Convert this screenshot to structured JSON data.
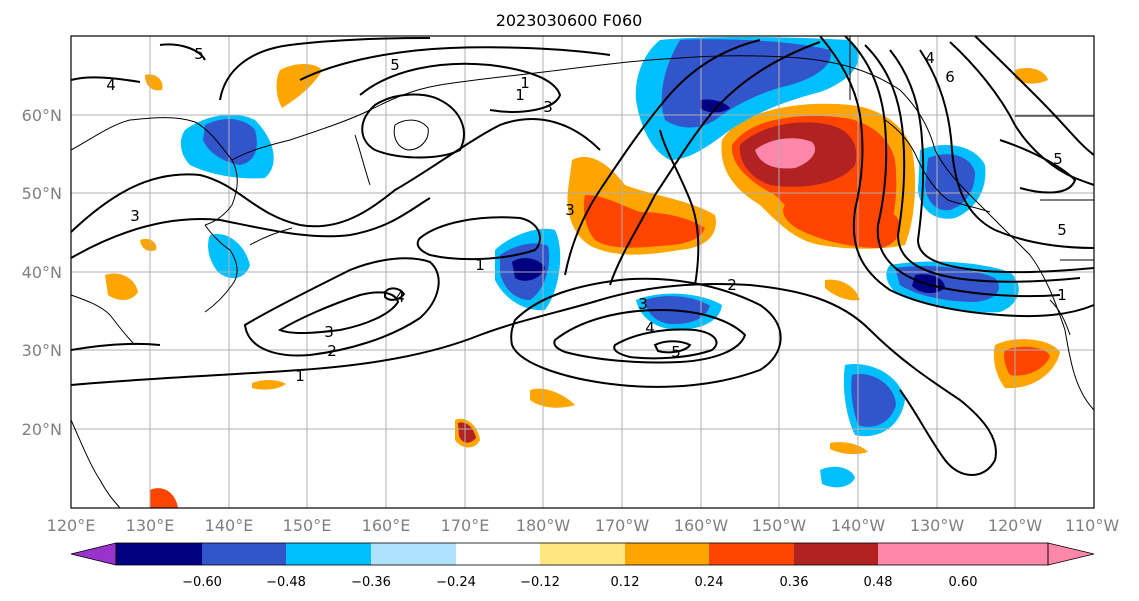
{
  "title": "2023030600 F060",
  "map": {
    "lon_ticks": [
      "120°E",
      "130°E",
      "140°E",
      "150°E",
      "160°E",
      "170°E",
      "180°W",
      "170°W",
      "160°W",
      "150°W",
      "140°W",
      "130°W",
      "120°W",
      "110°W"
    ],
    "lat_ticks": [
      "60°N",
      "50°N",
      "40°N",
      "30°N",
      "20°N"
    ],
    "contour_labels": [
      "5",
      "4",
      "3",
      "5",
      "1",
      "3",
      "1",
      "2",
      "3",
      "4",
      "1",
      "3",
      "4",
      "5",
      "2",
      "1",
      "4",
      "6",
      "5",
      "5",
      "1",
      "3"
    ]
  },
  "colorbar": {
    "ticks": [
      "−0.60",
      "−0.48",
      "−0.36",
      "−0.24",
      "−0.12",
      "0.12",
      "0.24",
      "0.36",
      "0.48",
      "0.60"
    ],
    "colors": [
      "#9933cc",
      "#000080",
      "#3355cc",
      "#00bfff",
      "#b0e2ff",
      "#ffffff",
      "#ffe680",
      "#ffa500",
      "#ff4500",
      "#b22222",
      "#ff88aa"
    ]
  }
}
